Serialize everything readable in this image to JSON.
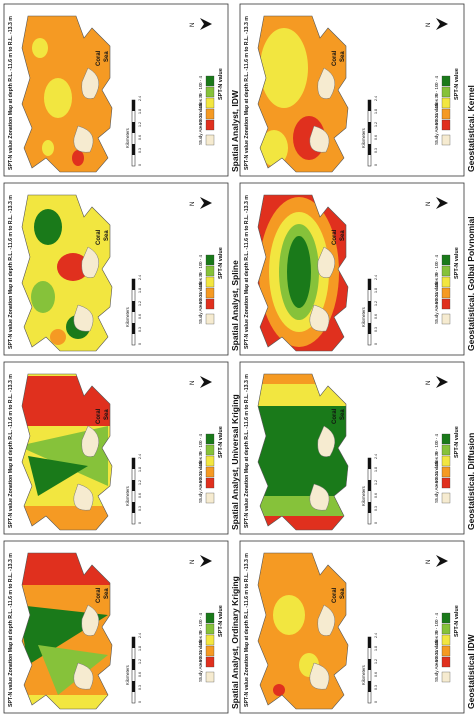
{
  "map_title": "SPT-N value Zonation Map at depth R.L. -11.6 m to R.L. -13.3 m",
  "sea_label_1": "Coral",
  "sea_label_2": "Sea",
  "legend_title": "SPT-N value",
  "legend_classes": [
    "0 - 4",
    "5 - 10",
    "11 - 30",
    "31 - 49",
    "> 50"
  ],
  "legend_colors": [
    "#1a7a1a",
    "#86c23a",
    "#f2e640",
    "#f59a23",
    "#e0301e"
  ],
  "boundary_label": "Study Area Boundaries",
  "north_label": "N",
  "scale_unit": "Kilometers",
  "scale_ticks": [
    "0",
    "0.3",
    "0.6",
    "1.2",
    "1.8",
    "2.4"
  ],
  "panels": [
    {
      "caption": "Geostatistical, Kernel",
      "pattern": "kernel"
    },
    {
      "caption": "Spatial Analyst, IDW",
      "pattern": "sa_idw"
    },
    {
      "caption": "Geostatistical, Golbal Polynomial",
      "pattern": "gp"
    },
    {
      "caption": "Spatial Analyst, Spline",
      "pattern": "spline"
    },
    {
      "caption": "Geostatistical, Diffusion",
      "pattern": "diffusion"
    },
    {
      "caption": "Spatial Analyst, Universal Kriging",
      "pattern": "uk"
    },
    {
      "caption": "Geostatistical IDW",
      "pattern": "geo_idw"
    },
    {
      "caption": "Spatial Analyst, Ordinary Kriging",
      "pattern": "ok"
    }
  ]
}
